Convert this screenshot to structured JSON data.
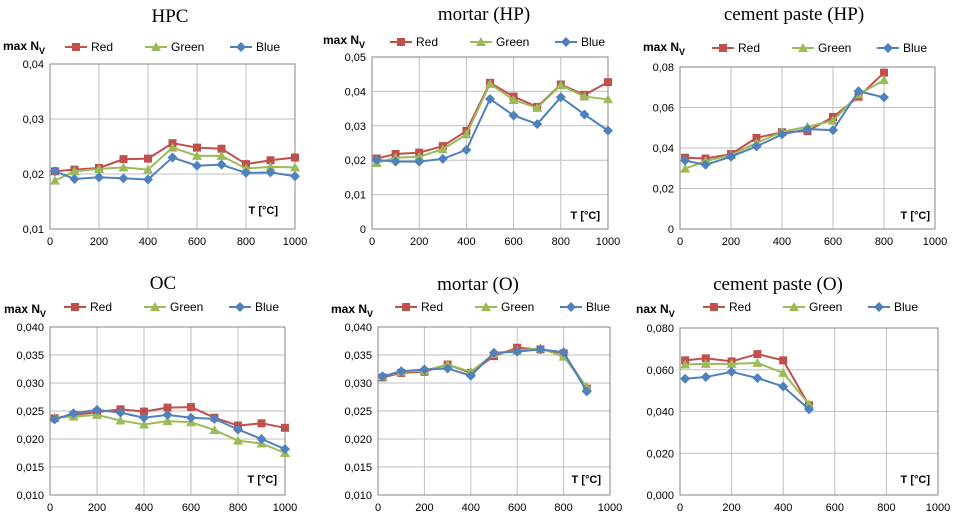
{
  "colors": {
    "Red": "#c0504d",
    "Green": "#9bbb59",
    "Blue": "#4f81bd",
    "grid": "#bfbfbf"
  },
  "chart_data": [
    {
      "type": "line",
      "title": "HPC",
      "ylabel": "max N",
      "ylabel_sub": "V",
      "xlabel": "T [°C]",
      "xlim": [
        0,
        1000
      ],
      "ylim": [
        0.01,
        0.04
      ],
      "xticks": [
        0,
        200,
        400,
        600,
        800,
        1000
      ],
      "xtick_labels": [
        "0",
        "200",
        "400",
        "600",
        "800",
        "1000"
      ],
      "yticks": [
        0.01,
        0.02,
        0.03,
        0.04
      ],
      "ytick_labels": [
        "0,01",
        "0,02",
        "0,03",
        "0,04"
      ],
      "grid": true,
      "legend": "top",
      "x": [
        20,
        100,
        200,
        300,
        400,
        500,
        600,
        700,
        800,
        900,
        1000
      ],
      "series": [
        {
          "name": "Red",
          "values": [
            0.0205,
            0.0208,
            0.0211,
            0.0227,
            0.0228,
            0.0256,
            0.0248,
            0.0246,
            0.0218,
            0.0225,
            0.023
          ]
        },
        {
          "name": "Green",
          "values": [
            0.0188,
            0.0205,
            0.0209,
            0.0212,
            0.0208,
            0.0248,
            0.0233,
            0.0233,
            0.021,
            0.0213,
            0.0212
          ]
        },
        {
          "name": "Blue",
          "values": [
            0.0205,
            0.0191,
            0.0194,
            0.0192,
            0.019,
            0.023,
            0.0215,
            0.0217,
            0.0202,
            0.0203,
            0.0196
          ]
        }
      ]
    },
    {
      "type": "line",
      "title": "mortar (HP)",
      "ylabel": "max N",
      "ylabel_sub": "V",
      "xlabel": "T [°C]",
      "xlim": [
        0,
        1000
      ],
      "ylim": [
        0,
        0.05
      ],
      "xticks": [
        0,
        200,
        400,
        600,
        800,
        1000
      ],
      "xtick_labels": [
        "0",
        "200",
        "400",
        "600",
        "800",
        "1000"
      ],
      "yticks": [
        0,
        0.01,
        0.02,
        0.03,
        0.04,
        0.05
      ],
      "ytick_labels": [
        "0",
        "0,01",
        "0,02",
        "0,03",
        "0,04",
        "0,05"
      ],
      "grid": true,
      "legend": "top",
      "x": [
        20,
        100,
        200,
        300,
        400,
        500,
        600,
        700,
        800,
        900,
        1000
      ],
      "series": [
        {
          "name": "Red",
          "values": [
            0.0205,
            0.0218,
            0.0222,
            0.0241,
            0.0285,
            0.0425,
            0.0385,
            0.0355,
            0.042,
            0.039,
            0.0427
          ]
        },
        {
          "name": "Green",
          "values": [
            0.0192,
            0.0207,
            0.021,
            0.0232,
            0.0275,
            0.0422,
            0.0375,
            0.0352,
            0.0418,
            0.0385,
            0.0377
          ]
        },
        {
          "name": "Blue",
          "values": [
            0.0201,
            0.0196,
            0.0196,
            0.0204,
            0.023,
            0.0378,
            0.033,
            0.0305,
            0.0383,
            0.0333,
            0.0286
          ]
        }
      ]
    },
    {
      "type": "line",
      "title": "cement paste (HP)",
      "ylabel": "max N",
      "ylabel_sub": "V",
      "xlabel": "T [°C]",
      "xlim": [
        0,
        1000
      ],
      "ylim": [
        0,
        0.08
      ],
      "xticks": [
        0,
        200,
        400,
        600,
        800,
        1000
      ],
      "xtick_labels": [
        "0",
        "200",
        "400",
        "600",
        "800",
        "1000"
      ],
      "yticks": [
        0,
        0.02,
        0.04,
        0.06,
        0.08
      ],
      "ytick_labels": [
        "0",
        "0,02",
        "0,04",
        "0,06",
        "0,08"
      ],
      "grid": true,
      "legend": "top",
      "x": [
        20,
        100,
        200,
        300,
        400,
        500,
        600,
        700,
        800
      ],
      "series": [
        {
          "name": "Red",
          "values": [
            0.0352,
            0.0348,
            0.037,
            0.045,
            0.0478,
            0.0483,
            0.0553,
            0.0653,
            0.0772
          ]
        },
        {
          "name": "Green",
          "values": [
            0.0298,
            0.0335,
            0.0365,
            0.0425,
            0.048,
            0.0505,
            0.0535,
            0.0665,
            0.0735
          ]
        },
        {
          "name": "Blue",
          "values": [
            0.0338,
            0.0317,
            0.0357,
            0.0408,
            0.0467,
            0.0493,
            0.0488,
            0.068,
            0.065
          ]
        }
      ]
    },
    {
      "type": "line",
      "title": "OC",
      "ylabel": "max N",
      "ylabel_sub": "V",
      "xlabel": "T [°C]",
      "xlim": [
        0,
        1000
      ],
      "ylim": [
        0.01,
        0.04
      ],
      "xticks": [
        0,
        200,
        400,
        600,
        800,
        1000
      ],
      "xtick_labels": [
        "0",
        "200",
        "400",
        "600",
        "800",
        "1000"
      ],
      "yticks": [
        0.01,
        0.015,
        0.02,
        0.025,
        0.03,
        0.035,
        0.04
      ],
      "ytick_labels": [
        "0,010",
        "0,015",
        "0,020",
        "0,025",
        "0,030",
        "0,035",
        "0,040"
      ],
      "grid": true,
      "legend": "top",
      "x": [
        20,
        100,
        200,
        300,
        400,
        500,
        600,
        700,
        800,
        900,
        1000
      ],
      "series": [
        {
          "name": "Red",
          "values": [
            0.0237,
            0.0243,
            0.0248,
            0.0253,
            0.0249,
            0.0256,
            0.0257,
            0.0238,
            0.0224,
            0.0228,
            0.022
          ]
        },
        {
          "name": "Green",
          "values": [
            0.0238,
            0.024,
            0.0243,
            0.0233,
            0.0226,
            0.0232,
            0.023,
            0.0216,
            0.0197,
            0.0192,
            0.0175
          ]
        },
        {
          "name": "Blue",
          "values": [
            0.0235,
            0.0246,
            0.0252,
            0.0247,
            0.0238,
            0.0243,
            0.0238,
            0.0236,
            0.0217,
            0.02,
            0.0182
          ]
        }
      ]
    },
    {
      "type": "line",
      "title": "mortar (O)",
      "ylabel": "max N",
      "ylabel_sub": "V",
      "xlabel": "T [°C]",
      "xlim": [
        0,
        1000
      ],
      "ylim": [
        0.01,
        0.04
      ],
      "xticks": [
        0,
        200,
        400,
        600,
        800,
        1000
      ],
      "xtick_labels": [
        "0",
        "200",
        "400",
        "600",
        "800",
        "1000"
      ],
      "yticks": [
        0.01,
        0.015,
        0.02,
        0.025,
        0.03,
        0.035,
        0.04
      ],
      "ytick_labels": [
        "0,010",
        "0,015",
        "0,020",
        "0,025",
        "0,030",
        "0,035",
        "0,040"
      ],
      "grid": true,
      "legend": "top",
      "x": [
        20,
        100,
        200,
        300,
        400,
        500,
        600,
        700,
        800,
        900
      ],
      "series": [
        {
          "name": "Red",
          "values": [
            0.031,
            0.0318,
            0.032,
            0.0333,
            0.0318,
            0.0348,
            0.0363,
            0.036,
            0.0353,
            0.029
          ]
        },
        {
          "name": "Green",
          "values": [
            0.0312,
            0.032,
            0.0322,
            0.0333,
            0.032,
            0.0352,
            0.0358,
            0.0362,
            0.0347,
            0.0293
          ]
        },
        {
          "name": "Blue",
          "values": [
            0.0312,
            0.0321,
            0.0324,
            0.0326,
            0.0313,
            0.0354,
            0.0356,
            0.036,
            0.0355,
            0.0285
          ]
        }
      ]
    },
    {
      "type": "line",
      "title": "cement paste (O)",
      "ylabel": "nax N",
      "ylabel_sub": "V",
      "xlabel": "T [°C]",
      "xlim": [
        0,
        1000
      ],
      "ylim": [
        0,
        0.08
      ],
      "xticks": [
        0,
        200,
        400,
        600,
        800,
        1000
      ],
      "xtick_labels": [
        "0",
        "200",
        "400",
        "600",
        "800",
        "1000"
      ],
      "yticks": [
        0,
        0.02,
        0.04,
        0.06,
        0.08
      ],
      "ytick_labels": [
        "0,000",
        "0,020",
        "0,040",
        "0,060",
        "0,080"
      ],
      "grid": true,
      "legend": "top",
      "x": [
        20,
        100,
        200,
        300,
        400,
        500
      ],
      "series": [
        {
          "name": "Red",
          "values": [
            0.0645,
            0.0655,
            0.064,
            0.0675,
            0.0645,
            0.043
          ]
        },
        {
          "name": "Green",
          "values": [
            0.0625,
            0.0628,
            0.0628,
            0.0633,
            0.0585,
            0.0435
          ]
        },
        {
          "name": "Blue",
          "values": [
            0.0557,
            0.0565,
            0.059,
            0.056,
            0.052,
            0.041
          ]
        }
      ]
    }
  ]
}
